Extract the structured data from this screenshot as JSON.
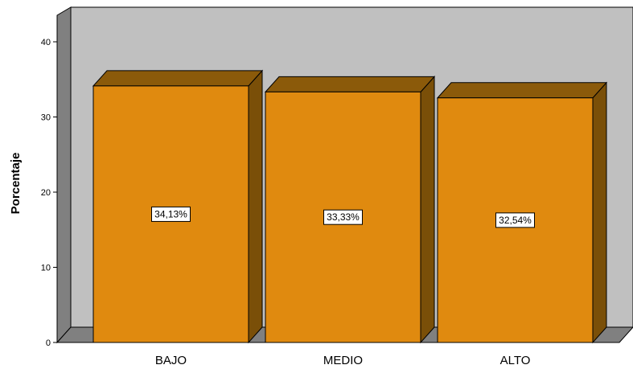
{
  "chart_data": {
    "type": "bar",
    "categories": [
      "BAJO",
      "MEDIO",
      "ALTO"
    ],
    "values": [
      34.13,
      33.33,
      32.54
    ],
    "data_labels": [
      "34,13%",
      "33,33%",
      "32,54%"
    ],
    "title": "",
    "xlabel": "",
    "ylabel": "Porcentaje",
    "ylim": [
      0,
      40
    ],
    "yticks": [
      0,
      10,
      20,
      30,
      40
    ],
    "grid": false,
    "style": "3d",
    "colors": {
      "bar_front": "#e08a0f",
      "bar_top": "#8b5a0a",
      "bar_side": "#7a4f08",
      "wall": "#c0c0c0",
      "wall_left": "#808080",
      "floor": "#808080"
    }
  }
}
